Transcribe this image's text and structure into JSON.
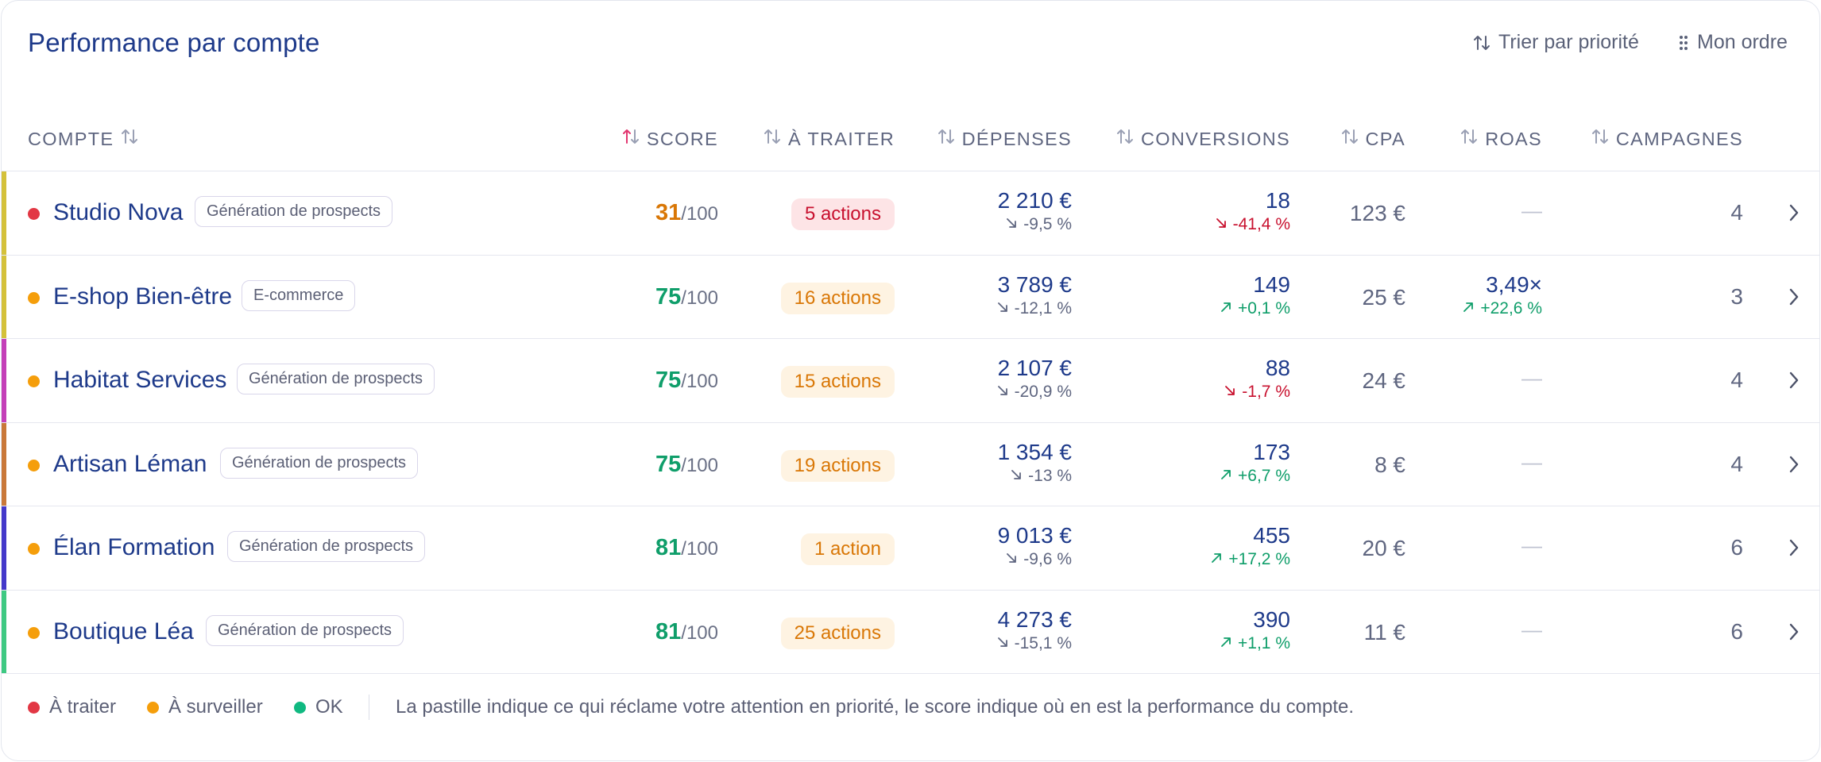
{
  "title": "Performance par compte",
  "actions": {
    "sort_label": "Trier par priorité",
    "order_label": "Mon ordre"
  },
  "columns": {
    "compte": "COMPTE",
    "score": "SCORE",
    "a_traiter": "À TRAITER",
    "depenses": "DÉPENSES",
    "conversions": "CONVERSIONS",
    "cpa": "CPA",
    "roas": "ROAS",
    "campagnes": "CAMPAGNES"
  },
  "rows": [
    {
      "name": "Studio Nova",
      "tag": "Génération de prospects",
      "score": "31",
      "score_den": "/100",
      "actions": "5 actions",
      "actions_level": "red",
      "spend": "2 210 €",
      "spend_delta": "-9,5 %",
      "conversions": "18",
      "conv_delta": "-41,4 %",
      "conv_trend": "down",
      "cpa": "123 €",
      "roas": "—",
      "roas_delta": "",
      "campaigns": "4",
      "stripe": "#d4c13a",
      "dot": "#e23744",
      "score_color": "#d97706"
    },
    {
      "name": "E-shop Bien-être",
      "tag": "E-commerce",
      "score": "75",
      "score_den": "/100",
      "actions": "16 actions",
      "actions_level": "orange",
      "spend": "3 789 €",
      "spend_delta": "-12,1 %",
      "conversions": "149",
      "conv_delta": "+0,1 %",
      "conv_trend": "up",
      "cpa": "25 €",
      "roas": "3,49×",
      "roas_delta": "+22,6 %",
      "campaigns": "3",
      "stripe": "#d4c13a",
      "dot": "#f59e0b",
      "score_color": "#0f9e6a"
    },
    {
      "name": "Habitat Services",
      "tag": "Génération de prospects",
      "score": "75",
      "score_den": "/100",
      "actions": "15 actions",
      "actions_level": "orange",
      "spend": "2 107 €",
      "spend_delta": "-20,9 %",
      "conversions": "88",
      "conv_delta": "-1,7 %",
      "conv_trend": "down",
      "cpa": "24 €",
      "roas": "—",
      "roas_delta": "",
      "campaigns": "4",
      "stripe": "#c43fb8",
      "dot": "#f59e0b",
      "score_color": "#0f9e6a"
    },
    {
      "name": "Artisan Léman",
      "tag": "Génération de prospects",
      "score": "75",
      "score_den": "/100",
      "actions": "19 actions",
      "actions_level": "orange",
      "spend": "1 354 €",
      "spend_delta": "-13 %",
      "conversions": "173",
      "conv_delta": "+6,7 %",
      "conv_trend": "up",
      "cpa": "8 €",
      "roas": "—",
      "roas_delta": "",
      "campaigns": "4",
      "stripe": "#c97839",
      "dot": "#f59e0b",
      "score_color": "#0f9e6a"
    },
    {
      "name": "Élan Formation",
      "tag": "Génération de prospects",
      "score": "81",
      "score_den": "/100",
      "actions": "1 action",
      "actions_level": "orange",
      "spend": "9 013 €",
      "spend_delta": "-9,6 %",
      "conversions": "455",
      "conv_delta": "+17,2 %",
      "conv_trend": "up",
      "cpa": "20 €",
      "roas": "—",
      "roas_delta": "",
      "campaigns": "6",
      "stripe": "#4338ca",
      "dot": "#f59e0b",
      "score_color": "#0f9e6a"
    },
    {
      "name": "Boutique Léa",
      "tag": "Génération de prospects",
      "score": "81",
      "score_den": "/100",
      "actions": "25 actions",
      "actions_level": "orange",
      "spend": "4 273 €",
      "spend_delta": "-15,1 %",
      "conversions": "390",
      "conv_delta": "+1,1 %",
      "conv_trend": "up",
      "cpa": "11 €",
      "roas": "—",
      "roas_delta": "",
      "campaigns": "6",
      "stripe": "#3ec982",
      "dot": "#f59e0b",
      "score_color": "#0f9e6a"
    }
  ],
  "legend": {
    "a_traiter": "À traiter",
    "a_surveiller": "À surveiller",
    "ok": "OK",
    "note": "La pastille indique ce qui réclame votre attention en priorité, le score indique où en est la performance du compte.",
    "colors": {
      "a_traiter": "#e23744",
      "a_surveiller": "#f59e0b",
      "ok": "#10b981"
    }
  },
  "icons": {
    "sort": "sort-arrows-icon",
    "order": "drag-handle-icon",
    "chevron": "chevron-right-icon"
  }
}
